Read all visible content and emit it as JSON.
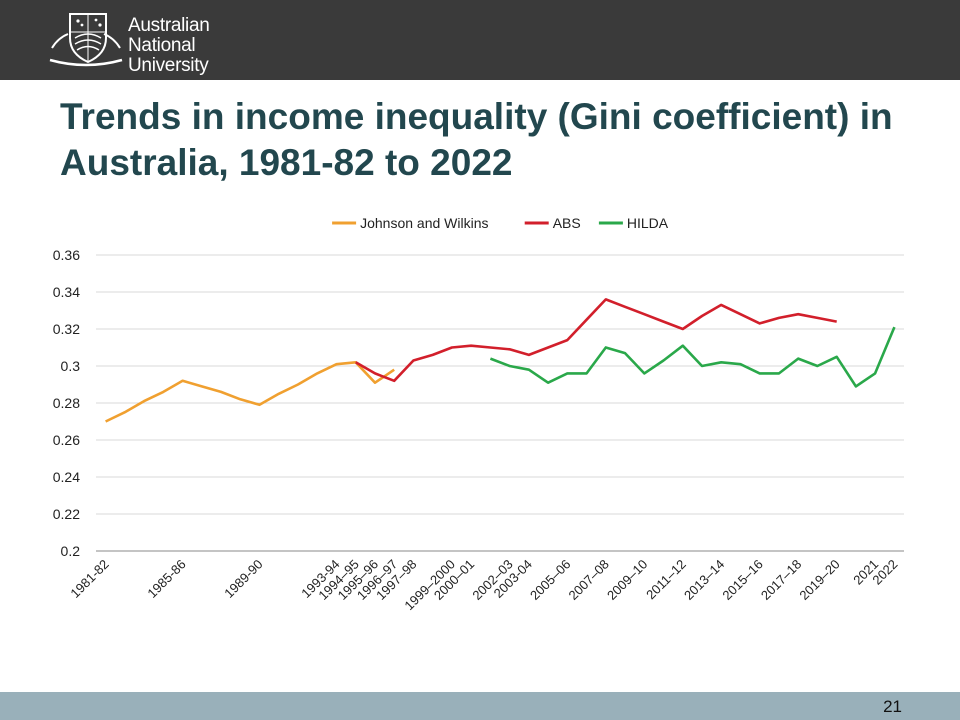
{
  "header": {
    "logo_lines": [
      "Australian",
      "National",
      "University"
    ],
    "background_color": "#3a3a3a"
  },
  "slide": {
    "title": "Trends in income inequality (Gini coefficient) in Australia, 1981-82 to 2022",
    "page_number": "21",
    "title_color": "#22474e",
    "footer_color": "#99b0ba"
  },
  "chart_data": {
    "type": "line",
    "title": "",
    "xlabel": "",
    "ylabel": "",
    "ylim": [
      0.2,
      0.36
    ],
    "yticks": [
      "0.2",
      "0.22",
      "0.24",
      "0.26",
      "0.28",
      "0.3",
      "0.32",
      "0.34",
      "0.36"
    ],
    "grid": true,
    "legend_position": "top",
    "categories": [
      "1981-82",
      "1982-83",
      "1983-84",
      "1984-85",
      "1985-86",
      "1986-87",
      "1987-88",
      "1988-89",
      "1989-90",
      "1990-91",
      "1991-92",
      "1992-93",
      "1993-94",
      "1994-95",
      "1995–96",
      "1996–97",
      "1997–98",
      "1998–99",
      "1999–2000",
      "2000–01",
      "2001–02",
      "2002–03",
      "2003-04",
      "2004–05",
      "2005–06",
      "2006–07",
      "2007–08",
      "2008–09",
      "2009–10",
      "2010–11",
      "2011–12",
      "2012–13",
      "2013–14",
      "2014–15",
      "2015–16",
      "2016–17",
      "2017–18",
      "2018–19",
      "2019–20",
      "2020–21",
      "2021",
      "2022"
    ],
    "tick_labels": [
      "1981-82",
      "",
      "",
      "",
      "1985-86",
      "",
      "",
      "",
      "1989-90",
      "",
      "",
      "",
      "1993-94",
      "1994–95",
      "1995–96",
      "1996–97",
      "1997–98",
      "",
      "1999–2000",
      "2000–01",
      "",
      "2002–03",
      "2003-04",
      "",
      "2005–06",
      "",
      "2007–08",
      "",
      "2009–10",
      "",
      "2011–12",
      "",
      "2013–14",
      "",
      "2015–16",
      "",
      "2017–18",
      "",
      "2019–20",
      "",
      "2021",
      "2022"
    ],
    "series": [
      {
        "name": "Johnson and Wilkins",
        "color": "#f0a030",
        "values": [
          0.27,
          0.275,
          0.281,
          0.286,
          0.292,
          0.289,
          0.286,
          0.282,
          0.279,
          0.285,
          0.29,
          0.296,
          0.301,
          0.302,
          0.291,
          0.298,
          null,
          null,
          null,
          null,
          null,
          null,
          null,
          null,
          null,
          null,
          null,
          null,
          null,
          null,
          null,
          null,
          null,
          null,
          null,
          null,
          null,
          null,
          null,
          null,
          null,
          null
        ]
      },
      {
        "name": "ABS",
        "color": "#d21f2b",
        "values": [
          null,
          null,
          null,
          null,
          null,
          null,
          null,
          null,
          null,
          null,
          null,
          null,
          null,
          0.302,
          0.296,
          0.292,
          0.303,
          0.306,
          0.31,
          0.311,
          0.31,
          0.309,
          0.306,
          0.31,
          0.314,
          0.325,
          0.336,
          0.332,
          0.328,
          0.324,
          0.32,
          0.327,
          0.333,
          0.328,
          0.323,
          0.326,
          0.328,
          0.326,
          0.324,
          null,
          null,
          null
        ]
      },
      {
        "name": "HILDA",
        "color": "#2aa84a",
        "values": [
          null,
          null,
          null,
          null,
          null,
          null,
          null,
          null,
          null,
          null,
          null,
          null,
          null,
          null,
          null,
          null,
          null,
          null,
          null,
          null,
          0.304,
          0.3,
          0.298,
          0.291,
          0.296,
          0.296,
          0.31,
          0.307,
          0.296,
          0.303,
          0.311,
          0.3,
          0.302,
          0.301,
          0.296,
          0.296,
          0.304,
          0.3,
          0.305,
          0.289,
          0.296,
          0.321
        ]
      }
    ]
  }
}
